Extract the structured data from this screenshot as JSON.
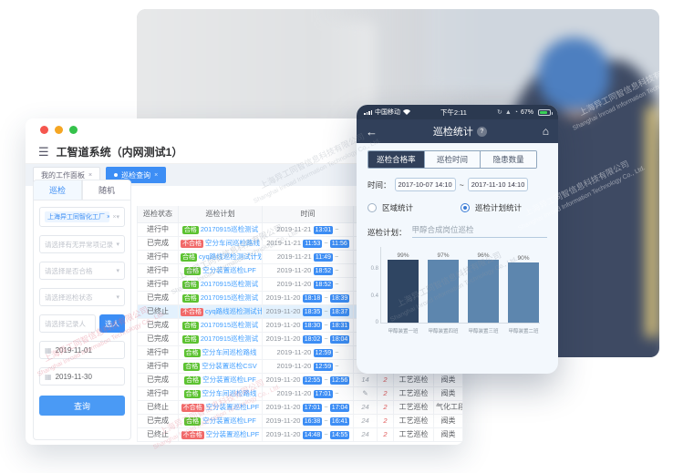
{
  "desktop": {
    "window_title": "工智道系统（内网测试1）",
    "hamburger_icon": "☰",
    "workspace_tabs": [
      {
        "label": "我的工作面板"
      },
      {
        "label": "巡检查询"
      }
    ],
    "sidebar": {
      "tabs": [
        "巡检",
        "随机"
      ],
      "org_tag": "上海异工同智化工厂",
      "filters": [
        {
          "placeholder": "请选择有无异常项记录"
        },
        {
          "placeholder": "请选择是否合格"
        },
        {
          "placeholder": "请选择巡检状态"
        }
      ],
      "recorder_placeholder": "请选择记录人",
      "pick_button": "选人",
      "date_start": "2019-11-01",
      "date_end": "2019-11-30",
      "query_button": "查询"
    },
    "table": {
      "headers": [
        "巡检状态",
        "巡检计划",
        "时间",
        "编写",
        "",
        "",
        ""
      ],
      "rows": [
        {
          "status": "进行中",
          "result": "合格",
          "plan": "20170915巡检测试",
          "date": "2019-11-21",
          "start": "13:01",
          "end": "",
          "num": "",
          "flag": "2",
          "type": "工艺巡检",
          "area": "阀类",
          "highlight": false
        },
        {
          "status": "已完成",
          "result": "不合格",
          "plan": "空分车间巡检路线",
          "date": "2019-11-21",
          "start": "11:53",
          "end": "11:56",
          "num": "",
          "flag": "2",
          "type": "工艺巡检",
          "area": "阀类",
          "highlight": false
        },
        {
          "status": "进行中",
          "result": "合格",
          "plan": "cyq路线巡检测试计划",
          "date": "2019-11-21",
          "start": "11:49",
          "end": "",
          "num": "",
          "flag": "2",
          "type": "工艺巡检",
          "area": "阀类",
          "highlight": false
        },
        {
          "status": "进行中",
          "result": "合格",
          "plan": "空分装置巡检LPF",
          "date": "2019-11-20",
          "start": "18:52",
          "end": "",
          "num": "",
          "flag": "2",
          "type": "工艺巡检",
          "area": "阀类",
          "highlight": false
        },
        {
          "status": "进行中",
          "result": "合格",
          "plan": "20170915巡检测试",
          "date": "2019-11-20",
          "start": "18:52",
          "end": "",
          "num": "",
          "flag": "2",
          "type": "工艺巡检",
          "area": "阀类",
          "highlight": false
        },
        {
          "status": "已完成",
          "result": "合格",
          "plan": "20170915巡检测试",
          "date": "2019-11-20",
          "start": "18:18",
          "end": "18:39",
          "num": "21",
          "flag": "2",
          "type": "工艺巡检",
          "area": "阀类",
          "highlight": false
        },
        {
          "status": "已终止",
          "result": "不合格",
          "plan": "cyq路线巡检测试计划",
          "date": "2019-11-20",
          "start": "18:35",
          "end": "18:37",
          "num": "",
          "flag": "2",
          "type": "工艺巡检",
          "area": "阀类",
          "highlight": true
        },
        {
          "status": "已完成",
          "result": "合格",
          "plan": "20170915巡检测试",
          "date": "2019-11-20",
          "start": "18:30",
          "end": "18:31",
          "num": "21",
          "flag": "2",
          "type": "工艺巡检",
          "area": "阀类",
          "highlight": false
        },
        {
          "status": "已完成",
          "result": "合格",
          "plan": "20170915巡检测试",
          "date": "2019-11-20",
          "start": "18:02",
          "end": "18:04",
          "num": "21",
          "flag": "2",
          "type": "工艺巡检",
          "area": "阀类",
          "highlight": false
        },
        {
          "status": "进行中",
          "result": "合格",
          "plan": "空分车间巡检路线",
          "date": "2019-11-20",
          "start": "12:59",
          "end": "",
          "num": "",
          "flag": "2",
          "type": "工艺巡检",
          "area": "阀类",
          "highlight": false
        },
        {
          "status": "进行中",
          "result": "合格",
          "plan": "空分装置巡检CSV",
          "date": "2019-11-20",
          "start": "12:59",
          "end": "",
          "num": "",
          "flag": "2",
          "type": "工艺巡检",
          "area": "阀类",
          "highlight": false
        },
        {
          "status": "已完成",
          "result": "合格",
          "plan": "空分装置巡检LPF",
          "date": "2019-11-20",
          "start": "12:55",
          "end": "12:56",
          "num": "14",
          "flag": "2",
          "type": "工艺巡检",
          "area": "阀类",
          "highlight": false
        },
        {
          "status": "进行中",
          "result": "合格",
          "plan": "空分车间巡检路线",
          "date": "2019-11-20",
          "start": "17:01",
          "end": "",
          "num": "",
          "flag": "2",
          "type": "工艺巡检",
          "area": "阀类",
          "highlight": false
        },
        {
          "status": "已终止",
          "result": "不合格",
          "plan": "空分装置巡检LPF",
          "date": "2019-11-20",
          "start": "17:01",
          "end": "17:04",
          "num": "24",
          "flag": "2",
          "type": "工艺巡检",
          "area": "气化工段",
          "highlight": false
        },
        {
          "status": "已完成",
          "result": "合格",
          "plan": "空分装置巡检LPF",
          "date": "2019-11-20",
          "start": "16:38",
          "end": "16:41",
          "num": "24",
          "flag": "2",
          "type": "工艺巡检",
          "area": "阀类",
          "highlight": false
        },
        {
          "status": "已终止",
          "result": "不合格",
          "plan": "空分装置巡检LPF",
          "date": "2019-11-20",
          "start": "14:48",
          "end": "14:55",
          "num": "24",
          "flag": "2",
          "type": "工艺巡检",
          "area": "阀类",
          "highlight": false
        }
      ]
    }
  },
  "phone": {
    "status_bar": {
      "carrier": "中国移动",
      "time": "下午2:11",
      "battery_percent": "67%"
    },
    "nav": {
      "back_icon": "←",
      "title": "巡检统计",
      "info_icon": "?",
      "home_icon": "⌂"
    },
    "segments": [
      {
        "label": "巡检合格率",
        "active": true
      },
      {
        "label": "巡检时间",
        "active": false
      },
      {
        "label": "隐患数量",
        "active": false
      }
    ],
    "time_label": "时间：",
    "time_from": "2017-10-07 14:10",
    "time_separator": "~",
    "time_to": "2017-11-10 14:10",
    "radios": [
      {
        "label": "区域统计",
        "selected": false
      },
      {
        "label": "巡检计划统计",
        "selected": true
      }
    ],
    "plan_label": "巡检计划：",
    "plan_value": "甲醇合成岗位巡检",
    "chart_data": {
      "type": "bar",
      "title": "",
      "categories": [
        "甲醇装置一班",
        "甲醇装置四班",
        "甲醇装置三班",
        "甲醇装置二班"
      ],
      "values": [
        99,
        97,
        96,
        90
      ],
      "value_labels": [
        "99%",
        "97%",
        "96%",
        "90%"
      ],
      "ylim": [
        0,
        1.05
      ],
      "yticks": [
        "0",
        "0.4",
        "0.8"
      ],
      "highlight_index": 0,
      "bar_color": "#5d86ae",
      "highlight_color": "#2f4562",
      "legend": false,
      "grid": false
    }
  },
  "watermark": {
    "cn": "上海异工同智信息科技有限公司",
    "en": "Shanghai Inroad Information Technology Co., Ltd."
  },
  "colors": {
    "accent_blue": "#3d8ef5",
    "badge_green": "#5cc231",
    "badge_red": "#f16a6a",
    "phone_navy": "#31405a",
    "highlight_row": "#e3f1fd"
  }
}
